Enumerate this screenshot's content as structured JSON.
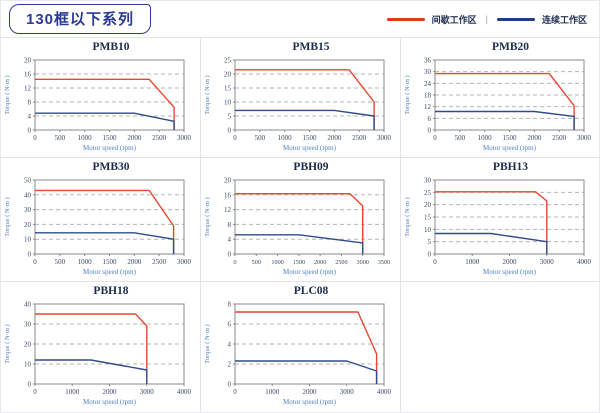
{
  "header": {
    "series_label": "130框以下系列"
  },
  "legend": {
    "intermittent_label": "间歇工作区",
    "continuous_label": "连续工作区",
    "separator": "|",
    "intermittent_color": "#e03a1e",
    "continuous_color": "#1e3c80"
  },
  "colors": {
    "frame": "#8a8a8a",
    "grid": "#b5b5b5",
    "tick_label": "#3d4a63",
    "axis_label": "#4f7fc0",
    "title": "#1c2b4a"
  },
  "chart_data": [
    {
      "type": "line",
      "title": "PMB10",
      "xlabel": "Motor speed (rpm)",
      "ylabel": "Torque ( N·m )",
      "xlim": [
        0,
        3000
      ],
      "xtick_step": 500,
      "ylim": [
        0,
        20
      ],
      "ytick_step": 4,
      "series": [
        {
          "name": "间歇工作区",
          "color": "#e8462e",
          "points": [
            [
              0,
              14.5
            ],
            [
              2300,
              14.5
            ],
            [
              2800,
              6.5
            ],
            [
              2800,
              0
            ]
          ]
        },
        {
          "name": "连续工作区",
          "color": "#2f4c8c",
          "points": [
            [
              0,
              4.8
            ],
            [
              2000,
              4.8
            ],
            [
              2800,
              2.5
            ],
            [
              2800,
              0
            ]
          ]
        }
      ]
    },
    {
      "type": "line",
      "title": "PMB15",
      "xlabel": "Motor speed (rpm)",
      "ylabel": "Torque ( N·m )",
      "xlim": [
        0,
        3000
      ],
      "xtick_step": 500,
      "ylim": [
        0,
        25
      ],
      "ytick_step": 5,
      "series": [
        {
          "name": "间歇工作区",
          "color": "#e8462e",
          "points": [
            [
              0,
              21.5
            ],
            [
              2300,
              21.5
            ],
            [
              2800,
              10
            ],
            [
              2800,
              0
            ]
          ]
        },
        {
          "name": "连续工作区",
          "color": "#2f4c8c",
          "points": [
            [
              0,
              7
            ],
            [
              2000,
              7
            ],
            [
              2800,
              5
            ],
            [
              2800,
              0
            ]
          ]
        }
      ]
    },
    {
      "type": "line",
      "title": "PMB20",
      "xlabel": "Motor speed (rpm)",
      "ylabel": "Torque ( N·m )",
      "xlim": [
        0,
        3000
      ],
      "xtick_step": 500,
      "ylim": [
        0,
        36
      ],
      "ytick_step": 6,
      "series": [
        {
          "name": "间歇工作区",
          "color": "#e8462e",
          "points": [
            [
              0,
              29
            ],
            [
              2300,
              29
            ],
            [
              2800,
              12.5
            ],
            [
              2800,
              0
            ]
          ]
        },
        {
          "name": "连续工作区",
          "color": "#2f4c8c",
          "points": [
            [
              0,
              9.5
            ],
            [
              2000,
              9.5
            ],
            [
              2800,
              7
            ],
            [
              2800,
              0
            ]
          ]
        }
      ]
    },
    {
      "type": "line",
      "title": "PMB30",
      "xlabel": "Motor speed (rpm)",
      "ylabel": "Torque ( N·m )",
      "xlim": [
        0,
        3000
      ],
      "xtick_step": 500,
      "ylim": [
        0,
        50
      ],
      "ytick_step": 10,
      "series": [
        {
          "name": "间歇工作区",
          "color": "#e8462e",
          "points": [
            [
              0,
              43
            ],
            [
              2300,
              43
            ],
            [
              2790,
              19
            ],
            [
              2790,
              0
            ]
          ]
        },
        {
          "name": "连续工作区",
          "color": "#2f4c8c",
          "points": [
            [
              0,
              14.3
            ],
            [
              2000,
              14.3
            ],
            [
              2790,
              10
            ],
            [
              2790,
              0
            ]
          ]
        }
      ]
    },
    {
      "type": "line",
      "title": "PBH09",
      "xlabel": "Motor speed (rpm)",
      "ylabel": "Torque ( N·m )",
      "xlim": [
        0,
        3500
      ],
      "xtick_step": 500,
      "ylim": [
        0,
        20
      ],
      "ytick_step": 4,
      "series": [
        {
          "name": "间歇工作区",
          "color": "#e8462e",
          "points": [
            [
              0,
              16.3
            ],
            [
              2700,
              16.3
            ],
            [
              3000,
              13
            ],
            [
              3000,
              0
            ]
          ]
        },
        {
          "name": "连续工作区",
          "color": "#2f4c8c",
          "points": [
            [
              0,
              5.2
            ],
            [
              1500,
              5.2
            ],
            [
              3000,
              3
            ],
            [
              3000,
              0
            ]
          ]
        }
      ]
    },
    {
      "type": "line",
      "title": "PBH13",
      "xlabel": "Motor speed (rpm)",
      "ylabel": "Torque ( N·m )",
      "xlim": [
        0,
        4000
      ],
      "xtick_step": 1000,
      "ylim": [
        0,
        30
      ],
      "ytick_step": 5,
      "series": [
        {
          "name": "间歇工作区",
          "color": "#e8462e",
          "points": [
            [
              0,
              25.2
            ],
            [
              2700,
              25.2
            ],
            [
              3000,
              21.5
            ],
            [
              3000,
              0
            ]
          ]
        },
        {
          "name": "连续工作区",
          "color": "#2f4c8c",
          "points": [
            [
              0,
              8.3
            ],
            [
              1500,
              8.3
            ],
            [
              3000,
              5
            ],
            [
              3000,
              0
            ]
          ]
        }
      ]
    },
    {
      "type": "line",
      "title": "PBH18",
      "xlabel": "Motor speed (rpm)",
      "ylabel": "Torque ( N·m )",
      "xlim": [
        0,
        4000
      ],
      "xtick_step": 1000,
      "ylim": [
        0,
        40
      ],
      "ytick_step": 10,
      "series": [
        {
          "name": "间歇工作区",
          "color": "#e8462e",
          "points": [
            [
              0,
              35
            ],
            [
              2700,
              35
            ],
            [
              3000,
              29
            ],
            [
              3000,
              0
            ]
          ]
        },
        {
          "name": "连续工作区",
          "color": "#2f4c8c",
          "points": [
            [
              0,
              12
            ],
            [
              1500,
              12
            ],
            [
              3000,
              7
            ],
            [
              3000,
              0
            ]
          ]
        }
      ]
    },
    {
      "type": "line",
      "title": "PLC08",
      "xlabel": "Motor speed (rpm)",
      "ylabel": "Torque ( N·m )",
      "xlim": [
        0,
        4000
      ],
      "xtick_step": 1000,
      "ylim": [
        0,
        8
      ],
      "ytick_step": 2,
      "series": [
        {
          "name": "间歇工作区",
          "color": "#e8462e",
          "points": [
            [
              0,
              7.2
            ],
            [
              3300,
              7.2
            ],
            [
              3800,
              3
            ],
            [
              3800,
              0
            ]
          ]
        },
        {
          "name": "连续工作区",
          "color": "#2f4c8c",
          "points": [
            [
              0,
              2.3
            ],
            [
              3000,
              2.3
            ],
            [
              3800,
              1.3
            ],
            [
              3800,
              0
            ]
          ]
        }
      ]
    }
  ]
}
